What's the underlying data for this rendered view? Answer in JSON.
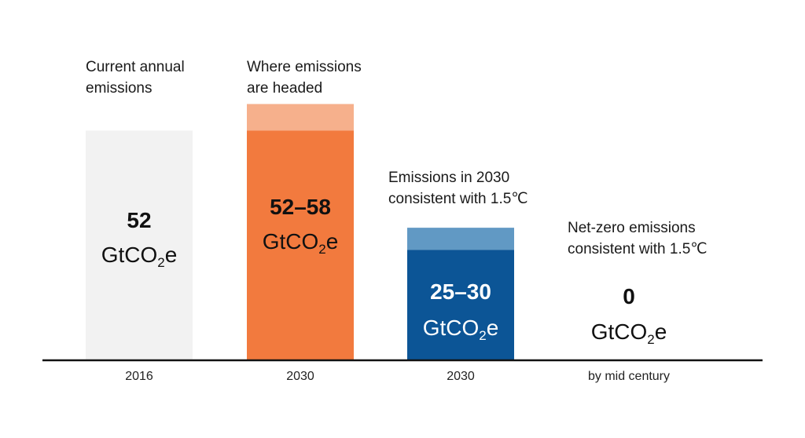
{
  "chart_data": {
    "type": "bar",
    "title": "",
    "xlabel": "",
    "ylabel": "",
    "ylim": [
      0,
      62
    ],
    "categories": [
      "2016",
      "2030",
      "2030",
      "by mid century"
    ],
    "bars": [
      {
        "heading": [
          "Current annual",
          "emissions"
        ],
        "category": "2016",
        "low": 52,
        "high": 52,
        "value_text": "52",
        "unit_main": "GtCO",
        "unit_sub": "2",
        "unit_tail": "e",
        "color": "#f2f2f2",
        "range_color": "#f2f2f2",
        "text_color": "#111111"
      },
      {
        "heading": [
          "Where emissions",
          "are headed"
        ],
        "category": "2030",
        "low": 52,
        "high": 58,
        "value_text": "52–58",
        "unit_main": "GtCO",
        "unit_sub": "2",
        "unit_tail": "e",
        "color": "#f27a3e",
        "range_color": "#f6b08c",
        "text_color": "#111111"
      },
      {
        "heading": [
          "Emissions in 2030",
          "consistent with 1.5℃"
        ],
        "category": "2030",
        "low": 25,
        "high": 30,
        "value_text": "25–30",
        "unit_main": "GtCO",
        "unit_sub": "2",
        "unit_tail": "e",
        "color": "#0c5596",
        "range_color": "#6199c4",
        "text_color": "#ffffff"
      },
      {
        "heading": [
          "Net-zero emissions",
          "consistent with 1.5℃"
        ],
        "category": "by mid century",
        "low": 0,
        "high": 0,
        "value_text": "0",
        "unit_main": "GtCO",
        "unit_sub": "2",
        "unit_tail": "e",
        "color": "#ffffff",
        "range_color": "#ffffff",
        "text_color": "#111111"
      }
    ]
  }
}
